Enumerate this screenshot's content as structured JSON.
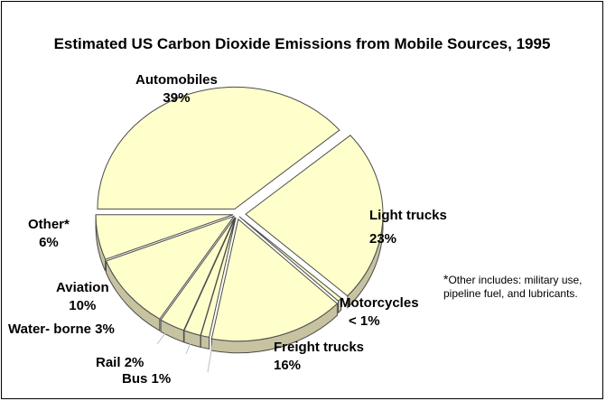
{
  "chart_data": {
    "type": "pie",
    "title": "Estimated US Carbon Dioxide Emissions from Mobile Sources, 1995",
    "slices": [
      {
        "label": "Automobiles",
        "display": "39%",
        "value": 39
      },
      {
        "label": "Light trucks",
        "display": "23%",
        "value": 23
      },
      {
        "label": "Motorcycles",
        "display": "< 1%",
        "value": 0.5
      },
      {
        "label": "Freight trucks",
        "display": "16%",
        "value": 16
      },
      {
        "label": "Bus",
        "display": "1%",
        "value": 1
      },
      {
        "label": "Rail",
        "display": "2%",
        "value": 2
      },
      {
        "label": "Water- borne",
        "display": "3%",
        "value": 3
      },
      {
        "label": "Aviation",
        "display": "10%",
        "value": 10
      },
      {
        "label": "Other*",
        "display": "6%",
        "value": 6
      }
    ],
    "colors": {
      "fill": "#FFFFCC",
      "side": "#C7C3A1",
      "stroke": "#4C4C4C"
    },
    "footnote_star": "*",
    "footnote": "Other includes: military use, pipeline fuel, and lubricants."
  }
}
